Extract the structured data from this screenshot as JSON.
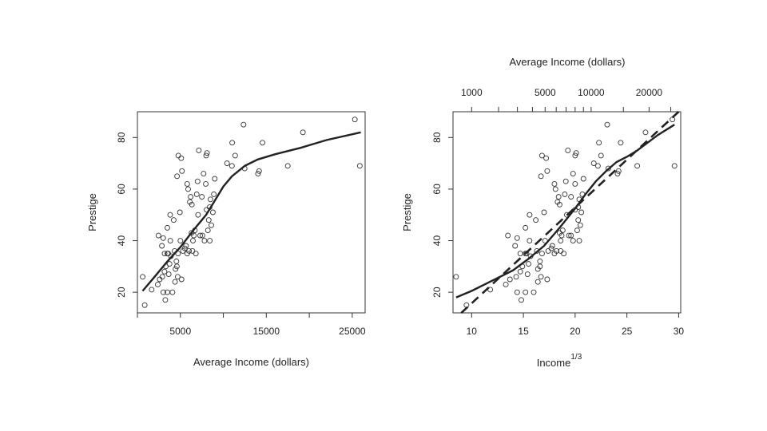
{
  "chart_data": [
    {
      "type": "scatter",
      "xlabel": "Average Income (dollars)",
      "ylabel": "Prestige",
      "xlim": [
        0,
        26500
      ],
      "ylim": [
        12,
        90
      ],
      "x_ticks": [
        5000,
        15000,
        25000
      ],
      "x_tick_labels": [
        "5000",
        "15000",
        "25000"
      ],
      "x_minor_ticks": [
        0,
        10000,
        20000
      ],
      "y_ticks": [
        20,
        40,
        60,
        80
      ],
      "y_tick_labels": [
        "20",
        "40",
        "60",
        "80"
      ],
      "grid": false,
      "points": [
        [
          611,
          26
        ],
        [
          848,
          15
        ],
        [
          1656,
          21
        ],
        [
          2370,
          23
        ],
        [
          2448,
          42
        ],
        [
          2594,
          25
        ],
        [
          2847,
          38
        ],
        [
          2901,
          26
        ],
        [
          3000,
          41
        ],
        [
          3016,
          20
        ],
        [
          3148,
          28
        ],
        [
          3161,
          35
        ],
        [
          3245,
          17
        ],
        [
          3300,
          30
        ],
        [
          3485,
          45
        ],
        [
          3485,
          35
        ],
        [
          3485,
          20
        ],
        [
          3582,
          35
        ],
        [
          3643,
          27
        ],
        [
          3739,
          31
        ],
        [
          3811,
          50
        ],
        [
          3828,
          40
        ],
        [
          3900,
          34
        ],
        [
          4076,
          20
        ],
        [
          4223,
          48
        ],
        [
          4330,
          36
        ],
        [
          4378,
          24
        ],
        [
          4433,
          29
        ],
        [
          4537,
          32
        ],
        [
          4592,
          30
        ],
        [
          4614,
          65
        ],
        [
          4686,
          26
        ],
        [
          4727,
          35
        ],
        [
          4761,
          73
        ],
        [
          4945,
          51
        ],
        [
          5000,
          40
        ],
        [
          5092,
          72
        ],
        [
          5134,
          25
        ],
        [
          5180,
          67
        ],
        [
          5300,
          36
        ],
        [
          5511,
          37
        ],
        [
          5648,
          38
        ],
        [
          5795,
          62
        ],
        [
          5800,
          35
        ],
        [
          5902,
          60
        ],
        [
          6000,
          36
        ],
        [
          6100,
          55
        ],
        [
          6200,
          57
        ],
        [
          6300,
          43
        ],
        [
          6337,
          54
        ],
        [
          6400,
          36
        ],
        [
          6462,
          40
        ],
        [
          6565,
          42
        ],
        [
          6686,
          44
        ],
        [
          6800,
          35
        ],
        [
          6900,
          58
        ],
        [
          7000,
          63
        ],
        [
          7059,
          50
        ],
        [
          7147,
          75
        ],
        [
          7300,
          42
        ],
        [
          7500,
          57
        ],
        [
          7562,
          42
        ],
        [
          7700,
          66
        ],
        [
          7800,
          40
        ],
        [
          7956,
          62
        ],
        [
          8000,
          73
        ],
        [
          8049,
          52
        ],
        [
          8100,
          74
        ],
        [
          8200,
          44
        ],
        [
          8300,
          48
        ],
        [
          8403,
          53
        ],
        [
          8425,
          40
        ],
        [
          8500,
          56
        ],
        [
          8600,
          46
        ],
        [
          8780,
          51
        ],
        [
          8895,
          58
        ],
        [
          9000,
          64
        ],
        [
          10432,
          70
        ],
        [
          11000,
          69
        ],
        [
          11030,
          78
        ],
        [
          11377,
          73
        ],
        [
          12351,
          85
        ],
        [
          12480,
          68
        ],
        [
          14032,
          66
        ],
        [
          14163,
          67
        ],
        [
          14558,
          78
        ],
        [
          17498,
          69
        ],
        [
          19263,
          82
        ],
        [
          25308,
          87
        ],
        [
          25879,
          69
        ]
      ],
      "smooth_curve": [
        [
          600,
          20.5
        ],
        [
          2000,
          26
        ],
        [
          3500,
          32
        ],
        [
          5000,
          37.5
        ],
        [
          6500,
          44
        ],
        [
          8000,
          50
        ],
        [
          9000,
          55.5
        ],
        [
          10000,
          61
        ],
        [
          11000,
          65
        ],
        [
          12500,
          69
        ],
        [
          14000,
          71.5
        ],
        [
          16000,
          73.5
        ],
        [
          19000,
          76
        ],
        [
          22000,
          79
        ],
        [
          26000,
          82
        ]
      ]
    },
    {
      "type": "scatter",
      "xlabel": "Income",
      "xlabel_superscript": "1/3",
      "ylabel": "Prestige",
      "top_axis_label": "Average Income (dollars)",
      "xlim": [
        8.2,
        30.2
      ],
      "ylim": [
        12,
        90
      ],
      "x_ticks": [
        10,
        15,
        20,
        25,
        30
      ],
      "x_tick_labels": [
        "10",
        "15",
        "20",
        "25",
        "30"
      ],
      "y_ticks": [
        20,
        40,
        60,
        80
      ],
      "y_tick_labels": [
        "20",
        "40",
        "60",
        "80"
      ],
      "top_ticks": [
        1000,
        5000,
        10000,
        20000
      ],
      "top_tick_labels": [
        "1000",
        "5000",
        "10000",
        "20000"
      ],
      "top_minor_ticks": [
        2000,
        3000,
        4000,
        6000,
        7000,
        8000,
        9000,
        15000,
        25000
      ],
      "grid": false,
      "points": [
        [
          8.5,
          26
        ],
        [
          9.5,
          15
        ],
        [
          11.8,
          21
        ],
        [
          13.3,
          23
        ],
        [
          13.5,
          42
        ],
        [
          13.7,
          25
        ],
        [
          14.2,
          38
        ],
        [
          14.3,
          26
        ],
        [
          14.4,
          41
        ],
        [
          14.4,
          20
        ],
        [
          14.7,
          28
        ],
        [
          14.7,
          35
        ],
        [
          14.8,
          17
        ],
        [
          14.9,
          30
        ],
        [
          15.2,
          45
        ],
        [
          15.2,
          35
        ],
        [
          15.2,
          20
        ],
        [
          15.3,
          35
        ],
        [
          15.4,
          27
        ],
        [
          15.5,
          31
        ],
        [
          15.6,
          50
        ],
        [
          15.6,
          40
        ],
        [
          15.7,
          34
        ],
        [
          16.0,
          20
        ],
        [
          16.2,
          48
        ],
        [
          16.3,
          36
        ],
        [
          16.4,
          24
        ],
        [
          16.4,
          29
        ],
        [
          16.6,
          32
        ],
        [
          16.6,
          30
        ],
        [
          16.7,
          65
        ],
        [
          16.7,
          26
        ],
        [
          16.8,
          35
        ],
        [
          16.8,
          73
        ],
        [
          17.0,
          51
        ],
        [
          17.1,
          40
        ],
        [
          17.2,
          72
        ],
        [
          17.3,
          25
        ],
        [
          17.3,
          67
        ],
        [
          17.4,
          36
        ],
        [
          17.7,
          37
        ],
        [
          17.8,
          38
        ],
        [
          18.0,
          62
        ],
        [
          18.0,
          35
        ],
        [
          18.1,
          60
        ],
        [
          18.2,
          36
        ],
        [
          18.3,
          55
        ],
        [
          18.4,
          57
        ],
        [
          18.5,
          43
        ],
        [
          18.5,
          54
        ],
        [
          18.6,
          36
        ],
        [
          18.6,
          40
        ],
        [
          18.7,
          42
        ],
        [
          18.8,
          44
        ],
        [
          18.9,
          35
        ],
        [
          19.0,
          58
        ],
        [
          19.1,
          63
        ],
        [
          19.2,
          50
        ],
        [
          19.3,
          75
        ],
        [
          19.4,
          42
        ],
        [
          19.6,
          57
        ],
        [
          19.6,
          42
        ],
        [
          19.8,
          66
        ],
        [
          19.8,
          40
        ],
        [
          20.0,
          62
        ],
        [
          20.0,
          73
        ],
        [
          20.0,
          52
        ],
        [
          20.1,
          74
        ],
        [
          20.2,
          44
        ],
        [
          20.3,
          48
        ],
        [
          20.3,
          53
        ],
        [
          20.4,
          40
        ],
        [
          20.4,
          56
        ],
        [
          20.5,
          46
        ],
        [
          20.6,
          51
        ],
        [
          20.7,
          58
        ],
        [
          20.8,
          64
        ],
        [
          21.8,
          70
        ],
        [
          22.2,
          69
        ],
        [
          22.3,
          78
        ],
        [
          22.5,
          73
        ],
        [
          23.1,
          85
        ],
        [
          23.2,
          68
        ],
        [
          24.1,
          66
        ],
        [
          24.2,
          67
        ],
        [
          24.4,
          78
        ],
        [
          26.0,
          69
        ],
        [
          26.8,
          82
        ],
        [
          29.4,
          87
        ],
        [
          29.6,
          69
        ]
      ],
      "smooth_curve": [
        [
          8.5,
          18
        ],
        [
          10,
          20.5
        ],
        [
          12,
          24.5
        ],
        [
          14,
          28.5
        ],
        [
          15.5,
          33
        ],
        [
          17,
          38
        ],
        [
          18.5,
          45
        ],
        [
          20,
          52.5
        ],
        [
          21,
          58
        ],
        [
          22,
          63
        ],
        [
          23,
          67
        ],
        [
          24,
          70.5
        ],
        [
          25,
          72.5
        ],
        [
          26,
          75
        ],
        [
          27,
          78
        ],
        [
          28,
          81
        ],
        [
          29.6,
          85
        ]
      ],
      "fit_line_dashed": [
        [
          9,
          12
        ],
        [
          30,
          90
        ]
      ]
    }
  ]
}
